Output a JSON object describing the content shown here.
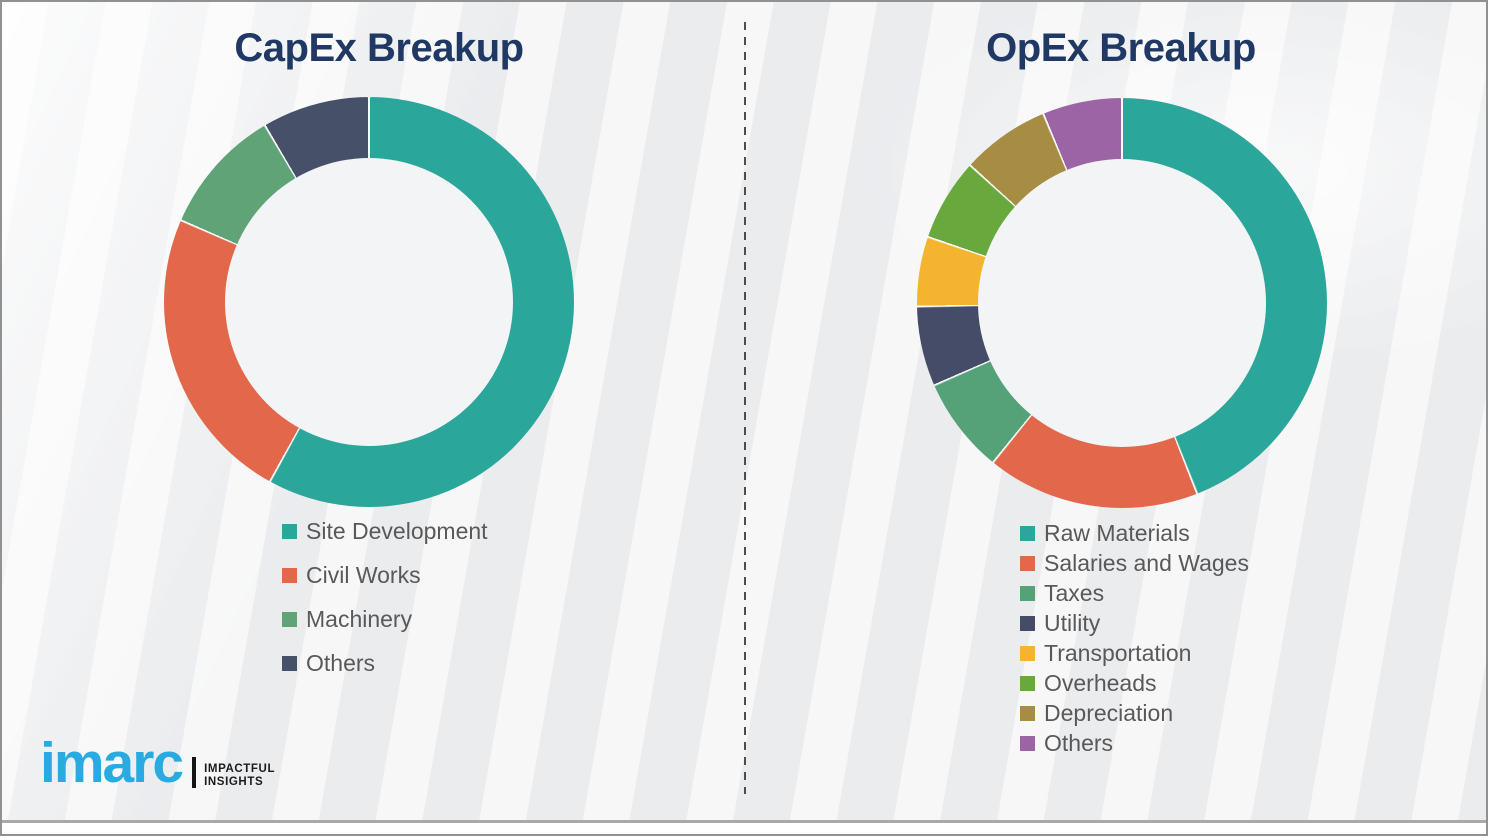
{
  "slide": {
    "background_color": "#f0f1f3",
    "divider_color": "#4d4d4d",
    "title_color": "#1f3864",
    "legend_text_color": "#595959",
    "separator_color": "#fafbfb"
  },
  "chart_data": [
    {
      "type": "pie",
      "variant": "donut",
      "title": "CapEx Breakup",
      "legend_position": "below-left",
      "values_are": "estimated_percent_from_arc_angles",
      "segments": [
        {
          "label": "Site Development",
          "value": 58.0,
          "color": "#2ba69a"
        },
        {
          "label": "Civil Works",
          "value": 23.5,
          "color": "#e2674b"
        },
        {
          "label": "Machinery",
          "value": 10.0,
          "color": "#5fa377"
        },
        {
          "label": "Others",
          "value": 8.5,
          "color": "#475069"
        }
      ]
    },
    {
      "type": "pie",
      "variant": "donut",
      "title": "OpEx Breakup",
      "legend_position": "below-left",
      "values_are": "estimated_percent_from_arc_angles",
      "segments": [
        {
          "label": "Raw Materials",
          "value": 44.0,
          "color": "#2ba69a"
        },
        {
          "label": "Salaries and Wages",
          "value": 16.8,
          "color": "#e2674b"
        },
        {
          "label": "Taxes",
          "value": 7.6,
          "color": "#55a279"
        },
        {
          "label": "Utility",
          "value": 6.3,
          "color": "#444c68"
        },
        {
          "label": "Transportation",
          "value": 5.5,
          "color": "#f5b42f"
        },
        {
          "label": "Overheads",
          "value": 6.5,
          "color": "#68a83c"
        },
        {
          "label": "Depreciation",
          "value": 7.0,
          "color": "#a78d44"
        },
        {
          "label": "Others",
          "value": 6.3,
          "color": "#9c64a4"
        }
      ]
    }
  ],
  "logo": {
    "brand": "imarc",
    "brand_color": "#29abe2",
    "tagline_line1": "IMPACTFUL",
    "tagline_line2": "INSIGHTS"
  }
}
